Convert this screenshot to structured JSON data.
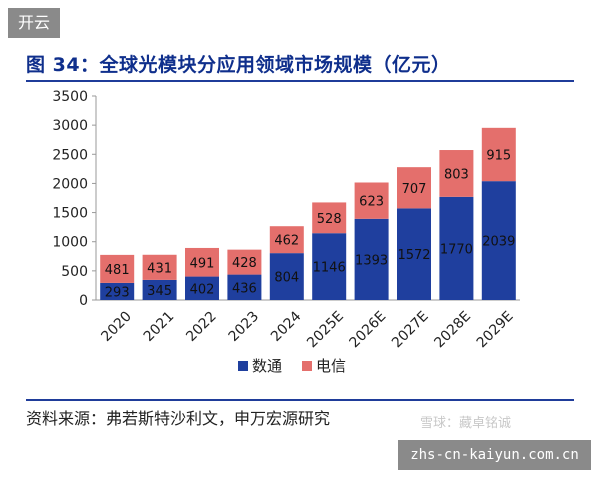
{
  "badge": "开云",
  "watermark": "雪球：藏卓铭诚",
  "site": "zhs-cn-kaiyun.com.cn",
  "chart_data": {
    "type": "bar",
    "stacked": true,
    "title": "图 34：全球光模块分应用领域市场规模（亿元）",
    "source": "资料来源：弗若斯特沙利文，申万宏源研究",
    "categories": [
      "2020",
      "2021",
      "2022",
      "2023",
      "2024",
      "2025E",
      "2026E",
      "2027E",
      "2028E",
      "2029E"
    ],
    "series": [
      {
        "name": "数通",
        "color": "#1f3f9e",
        "values": [
          293,
          345,
          402,
          436,
          804,
          1146,
          1393,
          1572,
          1770,
          2039
        ]
      },
      {
        "name": "电信",
        "color": "#e46f6c",
        "values": [
          481,
          431,
          491,
          428,
          462,
          528,
          623,
          707,
          803,
          915
        ]
      }
    ],
    "ylim": [
      0,
      3500
    ],
    "yticks": [
      0,
      500,
      1000,
      1500,
      2000,
      2500,
      3000,
      3500
    ],
    "grid": false,
    "legend": "bottom"
  }
}
